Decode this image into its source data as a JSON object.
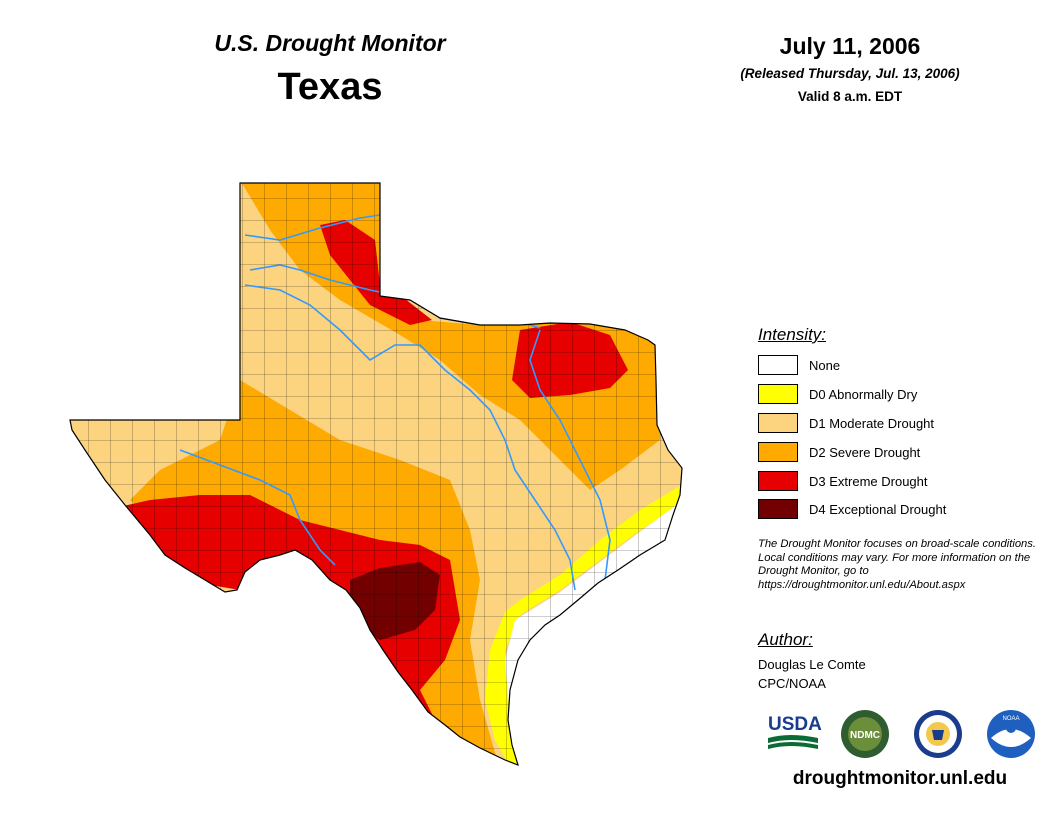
{
  "header": {
    "monitor_title": "U.S. Drought Monitor",
    "state_title": "Texas",
    "date": "July 11, 2006",
    "released": "(Released Thursday, Jul. 13, 2006)",
    "valid": "Valid 8 a.m. EDT"
  },
  "legend": {
    "heading": "Intensity:",
    "items": [
      {
        "label": "None",
        "color": "#ffffff"
      },
      {
        "label": "D0 Abnormally Dry",
        "color": "#ffff00"
      },
      {
        "label": "D1 Moderate Drought",
        "color": "#fcd37f"
      },
      {
        "label": "D2 Severe Drought",
        "color": "#ffaa00"
      },
      {
        "label": "D3 Extreme Drought",
        "color": "#e60000"
      },
      {
        "label": "D4 Exceptional Drought",
        "color": "#730000"
      }
    ]
  },
  "note": "The Drought Monitor focuses on broad-scale conditions. Local conditions may vary. For more information on the Drought Monitor, go to https://droughtmonitor.unl.edu/About.aspx",
  "author": {
    "heading": "Author:",
    "name": "Douglas Le Comte",
    "org": "CPC/NOAA"
  },
  "logos": {
    "usda": "USDA",
    "ndmc": "NDMC",
    "noaa": "NOAA"
  },
  "footer": {
    "url": "droughtmonitor.unl.edu"
  },
  "colors": {
    "river": "#3399ff",
    "county_line": "#000000"
  }
}
